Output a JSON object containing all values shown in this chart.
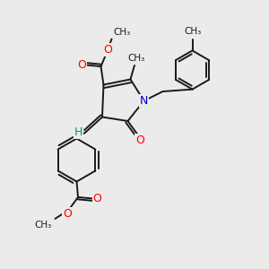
{
  "background_color": "#ebebeb",
  "atom_colors": {
    "O": "#ff0000",
    "N": "#0000cd",
    "C": "#1a1a1a",
    "H": "#009090"
  },
  "bond_color": "#1a1a1a",
  "bond_width": 1.4,
  "figsize": [
    3.0,
    3.0
  ],
  "dpi": 100,
  "xlim": [
    0,
    10
  ],
  "ylim": [
    0,
    10
  ]
}
